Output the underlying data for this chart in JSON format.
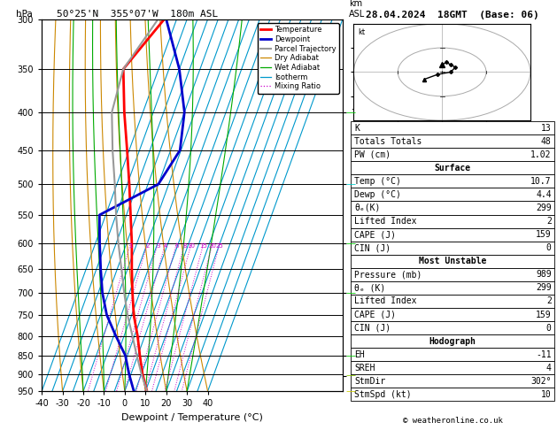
{
  "title_left": "50°25'N  355°07'W  180m ASL",
  "title_right": "28.04.2024  18GMT  (Base: 06)",
  "xlabel": "Dewpoint / Temperature (°C)",
  "pressure_levels": [
    300,
    350,
    400,
    450,
    500,
    550,
    600,
    650,
    700,
    750,
    800,
    850,
    900,
    950
  ],
  "temp_pressure": [
    950,
    900,
    850,
    800,
    750,
    700,
    650,
    600,
    550,
    500,
    450,
    400,
    350,
    300
  ],
  "temp_vals": [
    10.7,
    5.5,
    1.0,
    -3.5,
    -9.0,
    -13.5,
    -18.0,
    -22.5,
    -28.0,
    -34.0,
    -41.0,
    -49.0,
    -57.0,
    -46.0
  ],
  "dewp_pressure": [
    950,
    900,
    850,
    800,
    750,
    700,
    650,
    600,
    550,
    500,
    450,
    400,
    350,
    300
  ],
  "dewp_vals": [
    4.4,
    -1.0,
    -6.0,
    -14.0,
    -22.0,
    -28.0,
    -33.0,
    -38.0,
    -43.0,
    -20.0,
    -15.5,
    -20.0,
    -30.0,
    -45.0
  ],
  "parcel_pressure": [
    950,
    900,
    850,
    800,
    750,
    700,
    650,
    600,
    550,
    500,
    450,
    400,
    350,
    300
  ],
  "parcel_vals": [
    10.7,
    5.0,
    -0.5,
    -6.0,
    -12.0,
    -17.5,
    -23.0,
    -29.0,
    -35.0,
    -41.0,
    -48.0,
    -55.0,
    -57.0,
    -49.0
  ],
  "isotherm_temps": [
    -40,
    -35,
    -30,
    -25,
    -20,
    -15,
    -10,
    -5,
    0,
    5,
    10,
    15,
    20,
    25,
    30,
    35,
    40
  ],
  "dry_adiabat_base": [
    -40,
    -30,
    -20,
    -10,
    0,
    10,
    20,
    30,
    40
  ],
  "wet_adiabat_base": [
    -20,
    -10,
    0,
    10,
    20,
    30
  ],
  "mixing_ratio_vals": [
    1,
    2,
    3,
    4,
    6,
    8,
    10,
    15,
    20,
    25
  ],
  "km_ticks_p": [
    400,
    500,
    600,
    700,
    850,
    905
  ],
  "km_ticks_label": [
    "7",
    "6",
    "5",
    "3",
    "2",
    "1LCL"
  ],
  "temp_color": "#ff0000",
  "dewp_color": "#0000cc",
  "parcel_color": "#999999",
  "dry_color": "#cc8800",
  "wet_color": "#00aa00",
  "iso_color": "#0099cc",
  "mix_color": "#cc00cc",
  "bg_color": "#ffffff",
  "xmin": -40,
  "xmax": 40,
  "pmin": 300,
  "pmax": 950,
  "skew": 65,
  "legend_items": [
    [
      "Temperature",
      "#ff0000",
      2.0,
      "-"
    ],
    [
      "Dewpoint",
      "#0000cc",
      2.0,
      "-"
    ],
    [
      "Parcel Trajectory",
      "#999999",
      1.5,
      "-"
    ],
    [
      "Dry Adiabat",
      "#cc8800",
      0.9,
      "-"
    ],
    [
      "Wet Adiabat",
      "#00aa00",
      0.9,
      "-"
    ],
    [
      "Isotherm",
      "#0099cc",
      0.9,
      "-"
    ],
    [
      "Mixing Ratio",
      "#cc00cc",
      0.9,
      ":"
    ]
  ],
  "K": 13,
  "TT": 48,
  "PW": 1.02,
  "surf_temp": "10.7",
  "surf_dewp": "4.4",
  "surf_theta": 299,
  "surf_li": 2,
  "surf_cape": 159,
  "surf_cin": 0,
  "mu_pres": 989,
  "mu_theta": 299,
  "mu_li": 2,
  "mu_cape": 159,
  "mu_cin": 0,
  "hodo_eh": -11,
  "hodo_sreh": 4,
  "hodo_stmdir": "302°",
  "hodo_stmspd": 10,
  "hodo_u": [
    0,
    1,
    2,
    3,
    2,
    -1,
    -4
  ],
  "hodo_v": [
    3,
    4,
    3,
    2,
    0,
    -1,
    -3
  ]
}
